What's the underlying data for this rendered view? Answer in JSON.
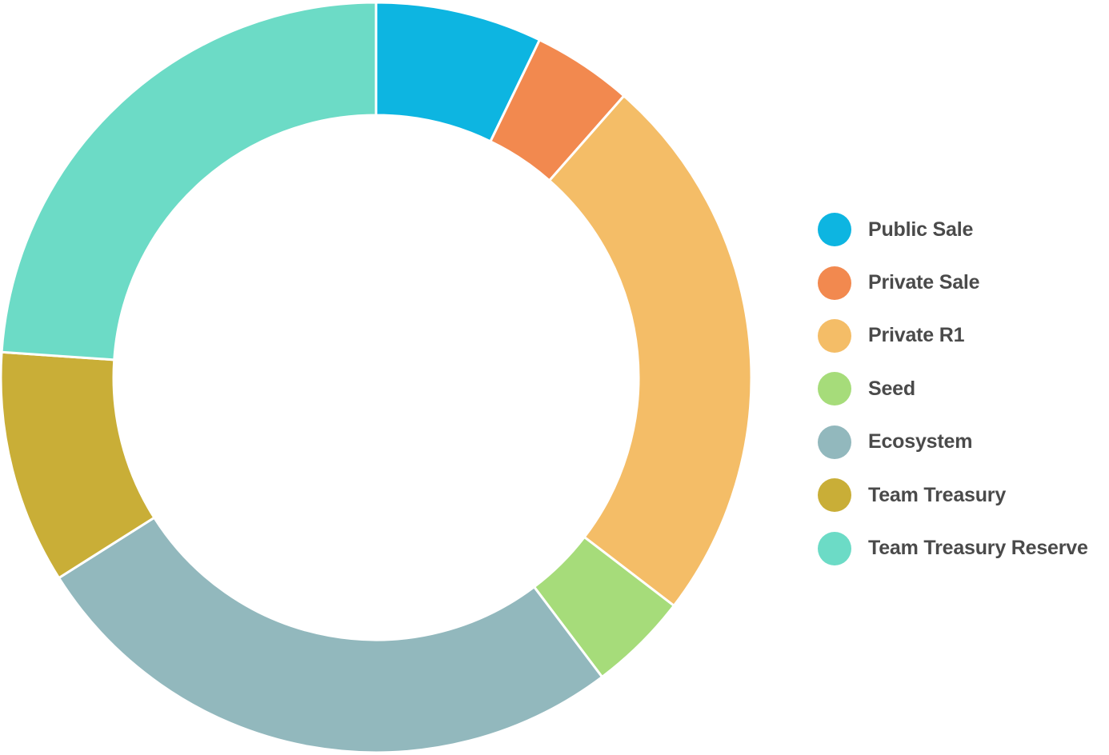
{
  "chart_data": {
    "type": "pie",
    "variant": "donut",
    "title": "",
    "legend_position": "right",
    "slices": [
      {
        "label": "Public Sale",
        "value": 7.5,
        "color": "#0db5e1"
      },
      {
        "label": "Private Sale",
        "value": 4.5,
        "color": "#f2894f"
      },
      {
        "label": "Private R1",
        "value": 25,
        "color": "#f4bd67"
      },
      {
        "label": "Seed",
        "value": 4.5,
        "color": "#a6dc7a"
      },
      {
        "label": "Ecosystem",
        "value": 27.5,
        "color": "#92b8bd"
      },
      {
        "label": "Team Treasury",
        "value": 10.5,
        "color": "#c9ae37"
      },
      {
        "label": "Team Treasury Reserve",
        "value": 25,
        "color": "#6cdbc6"
      }
    ]
  }
}
